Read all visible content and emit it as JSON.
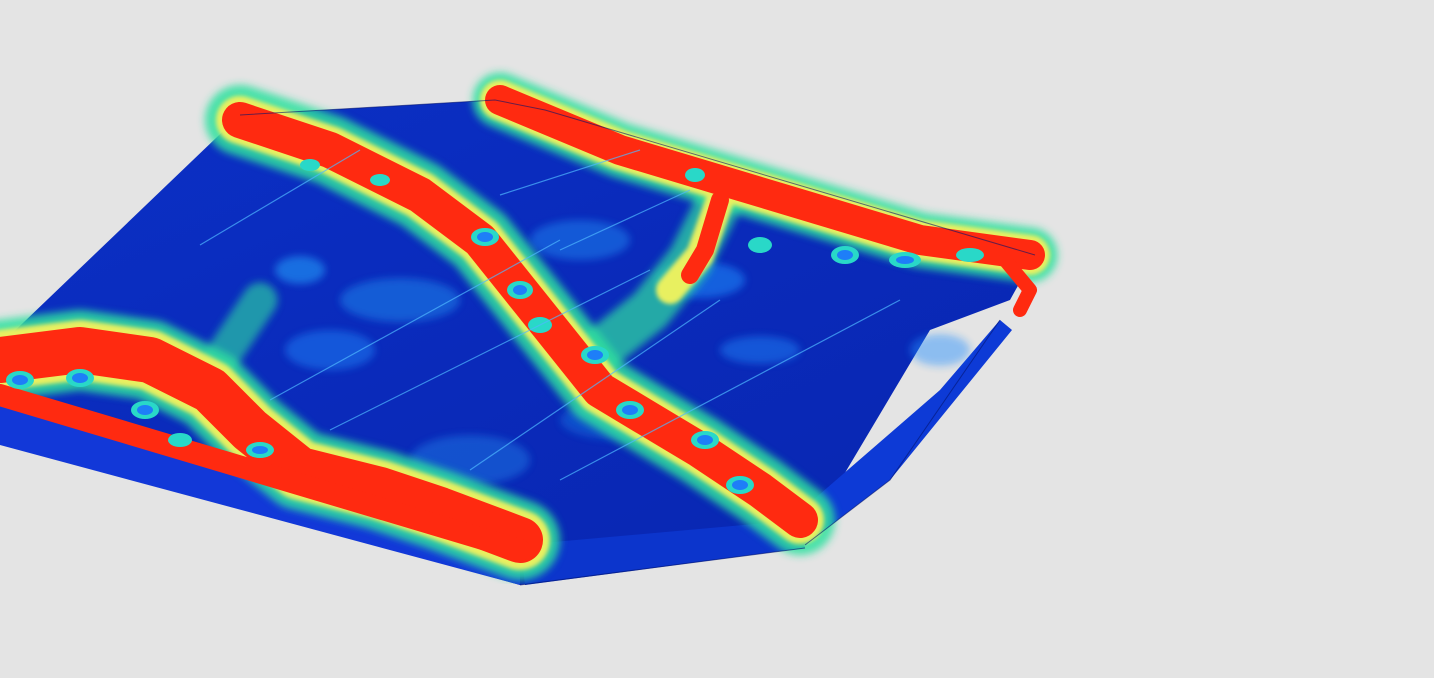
{
  "viewport": {
    "background": "#e4e4e4",
    "content": "stress-contour-model",
    "colors": {
      "low": "#0a2ec8",
      "low_dark": "#061aa0",
      "mid_low": "#1ea8ff",
      "mid": "#29e0c8",
      "mid_high": "#7cf05a",
      "high_low": "#f0f050",
      "high": "#ff2a10",
      "high_dark": "#c81208"
    }
  }
}
